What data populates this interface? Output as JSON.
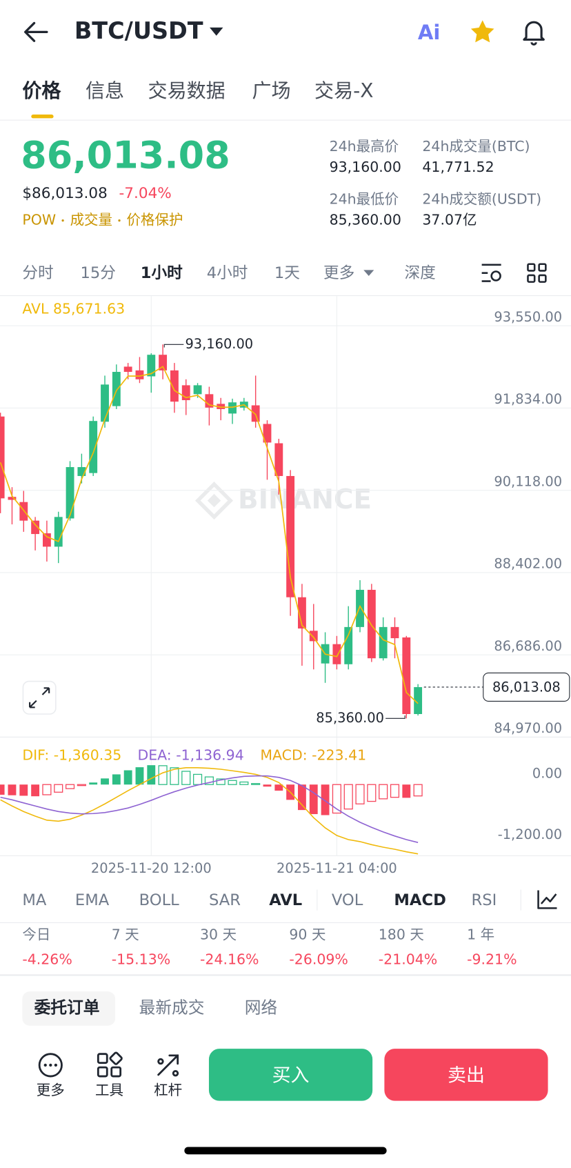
{
  "header": {
    "title": "BTC/USDT",
    "ai_label": "Ai"
  },
  "tabs": [
    {
      "label": "价格",
      "active": true
    },
    {
      "label": "信息",
      "active": false
    },
    {
      "label": "交易数据",
      "active": false
    },
    {
      "label": "广场",
      "active": false
    },
    {
      "label": "交易-X",
      "active": false
    }
  ],
  "ticker": {
    "price": "86,013.08",
    "usd_price": "$86,013.08",
    "change": "-7.04%",
    "tags": [
      "POW",
      "成交量",
      "价格保护"
    ]
  },
  "stats": [
    {
      "label": "24h最高价",
      "value": "93,160.00"
    },
    {
      "label": "24h成交量(BTC)",
      "value": "41,771.52"
    },
    {
      "label": "24h最低价",
      "value": "85,360.00"
    },
    {
      "label": "24h成交额(USDT)",
      "value": "37.07亿"
    }
  ],
  "intervals": [
    {
      "label": "分时",
      "active": false
    },
    {
      "label": "15分",
      "active": false
    },
    {
      "label": "1小时",
      "active": true
    },
    {
      "label": "4小时",
      "active": false
    },
    {
      "label": "1天",
      "active": false
    },
    {
      "label": "更多",
      "active": false
    },
    {
      "label": "深度",
      "active": false
    }
  ],
  "chart_data": [
    {
      "type": "candlestick",
      "categories": [
        null,
        null,
        null,
        null,
        null,
        null,
        null,
        null,
        null,
        null,
        null,
        null,
        null,
        "2025-11-20 12:00",
        null,
        null,
        null,
        null,
        null,
        null,
        null,
        null,
        null,
        null,
        null,
        null,
        null,
        null,
        null,
        "2025-11-21 04:00",
        null,
        null,
        null,
        null,
        null,
        null,
        null
      ],
      "open": [
        91657,
        89981,
        89873,
        89485,
        89221,
        88942,
        89531,
        90416,
        90478,
        91548,
        91874,
        92697,
        92619,
        92495,
        92945,
        92619,
        92309,
        92123,
        92123,
        91921,
        91719,
        91843,
        91890,
        91502,
        91099,
        90416,
        87887,
        87188,
        86506,
        86909,
        86490,
        87266,
        88042,
        86614,
        87266,
        87049,
        85451
      ],
      "high": [
        91735,
        90183,
        90106,
        89562,
        89485,
        89671,
        90726,
        90881,
        91657,
        92510,
        92743,
        92774,
        92898,
        92976,
        93160,
        92774,
        92433,
        92355,
        92278,
        92045,
        92029,
        92045,
        92510,
        91579,
        91192,
        90540,
        88166,
        87747,
        87157,
        87080,
        87701,
        88243,
        88166,
        87468,
        87468,
        87080,
        86075
      ],
      "low": [
        89640,
        89407,
        89252,
        88864,
        88632,
        88600,
        89485,
        90261,
        90416,
        91424,
        91812,
        92433,
        92355,
        92154,
        92433,
        91735,
        91688,
        92045,
        91471,
        91579,
        91502,
        91781,
        91424,
        90338,
        90028,
        87499,
        86459,
        86382,
        86102,
        86382,
        86382,
        87157,
        86537,
        86568,
        86614,
        85360,
        85420
      ],
      "close": [
        89950,
        89919,
        89485,
        89206,
        88942,
        89562,
        90602,
        90602,
        91564,
        92324,
        92588,
        92588,
        92433,
        92945,
        92619,
        91967,
        91998,
        92309,
        91843,
        91812,
        91952,
        91967,
        91548,
        91114,
        90416,
        87887,
        87235,
        86971,
        86909,
        86490,
        87266,
        88042,
        86614,
        87266,
        87033,
        85451,
        86013.08
      ],
      "up_color": "#2ebd85",
      "down_color": "#f6465d",
      "series": [
        {
          "name": "AVL 85,671.63",
          "color": "#f0b90b",
          "values": [
            90700,
            90000,
            89700,
            89400,
            89150,
            89050,
            89600,
            90350,
            90900,
            91600,
            92200,
            92500,
            92500,
            92550,
            92700,
            92200,
            92050,
            92100,
            91900,
            91850,
            91850,
            91900,
            91700,
            91000,
            90300,
            88300,
            87300,
            87050,
            86700,
            86650,
            87100,
            87700,
            87300,
            87000,
            86900,
            85900,
            85671.63
          ]
        }
      ],
      "ylim": [
        84970,
        94170
      ],
      "yticks": [
        {
          "value": 93550,
          "label": "93,550.00"
        },
        {
          "value": 91834,
          "label": "91,834.00"
        },
        {
          "value": 90118,
          "label": "90,118.00"
        },
        {
          "value": 88402,
          "label": "88,402.00"
        },
        {
          "value": 86686,
          "label": "86,686.00"
        },
        {
          "value": 84970,
          "label": "84,970.00"
        }
      ],
      "grid": true,
      "high_label": "93,160.00",
      "low_label": "85,360.00",
      "last_label": "86,013.08",
      "watermark": "BINANCE"
    },
    {
      "type": "macd",
      "up_color": "#2ebd85",
      "down_color": "#f6465d",
      "series": [
        {
          "name": "DIF: -1,360.35",
          "color": "#f0b90b",
          "kind": "line",
          "values": [
            -300,
            -420,
            -530,
            -620,
            -700,
            -720,
            -680,
            -600,
            -500,
            -380,
            -250,
            -120,
            0,
            120,
            230,
            300,
            330,
            330,
            320,
            300,
            270,
            240,
            200,
            140,
            40,
            -150,
            -400,
            -650,
            -850,
            -1000,
            -1080,
            -1120,
            -1180,
            -1230,
            -1270,
            -1320,
            -1360.35
          ]
        },
        {
          "name": "DEA: -1,136.94",
          "color": "#8e63d2",
          "kind": "line",
          "values": [
            -250,
            -300,
            -360,
            -420,
            -480,
            -530,
            -560,
            -575,
            -570,
            -550,
            -510,
            -460,
            -390,
            -310,
            -220,
            -140,
            -70,
            -10,
            40,
            90,
            130,
            160,
            170,
            170,
            140,
            80,
            -20,
            -160,
            -320,
            -480,
            -620,
            -740,
            -840,
            -930,
            -1010,
            -1080,
            -1136.94
          ]
        },
        {
          "name": "MACD: -223.41",
          "color": "#e9a514",
          "kind": "bar",
          "values": [
            -200,
            -210,
            -220,
            -230,
            -200,
            -150,
            -80,
            -20,
            40,
            120,
            200,
            280,
            340,
            380,
            370,
            330,
            260,
            200,
            150,
            110,
            80,
            50,
            20,
            -40,
            -120,
            -300,
            -500,
            -580,
            -600,
            -560,
            -480,
            -380,
            -330,
            -280,
            -250,
            -260,
            -223.41
          ]
        }
      ],
      "ylim": [
        -1390,
        800
      ],
      "yticks": [
        {
          "value": 0,
          "label": "0.00"
        },
        {
          "value": -1200,
          "label": "-1,200.00"
        }
      ]
    }
  ],
  "indicators": [
    {
      "label": "MA",
      "active": false
    },
    {
      "label": "EMA",
      "active": false
    },
    {
      "label": "BOLL",
      "active": false
    },
    {
      "label": "SAR",
      "active": false
    },
    {
      "label": "AVL",
      "active": true
    },
    {
      "label": "VOL",
      "active": false
    },
    {
      "label": "MACD",
      "active": true
    },
    {
      "label": "RSI",
      "active": false
    }
  ],
  "performance": [
    {
      "label": "今日",
      "value": "-4.26%"
    },
    {
      "label": "7 天",
      "value": "-15.13%"
    },
    {
      "label": "30 天",
      "value": "-24.16%"
    },
    {
      "label": "90 天",
      "value": "-26.09%"
    },
    {
      "label": "180 天",
      "value": "-21.04%"
    },
    {
      "label": "1 年",
      "value": "-9.21%"
    }
  ],
  "order_tabs": [
    {
      "label": "委托订单",
      "active": true
    },
    {
      "label": "最新成交",
      "active": false
    },
    {
      "label": "网络",
      "active": false
    }
  ],
  "actions": [
    "更多",
    "工具",
    "杠杆"
  ],
  "buttons": {
    "buy": "买入",
    "sell": "卖出"
  }
}
